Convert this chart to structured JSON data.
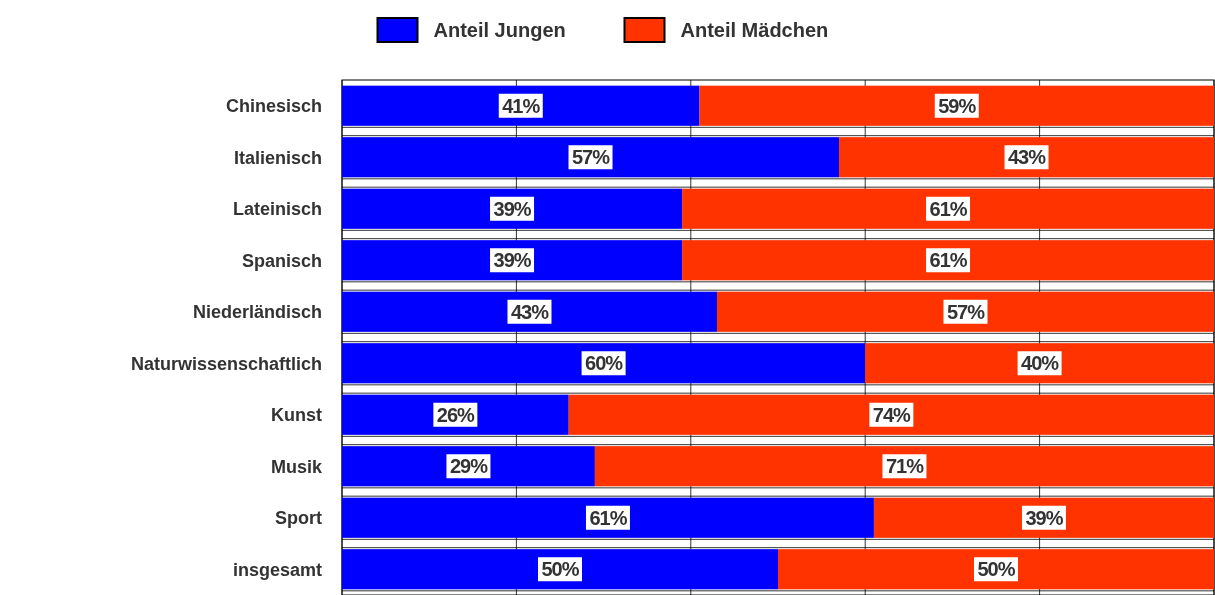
{
  "chart_data": {
    "type": "bar",
    "orientation": "horizontal",
    "stacked": true,
    "categories": [
      "Chinesisch",
      "Italienisch",
      "Lateinisch",
      "Spanisch",
      "Niederländisch",
      "Naturwissenschaftlich",
      "Kunst",
      "Musik",
      "Sport",
      "insgesamt"
    ],
    "series": [
      {
        "name": "Anteil Jungen",
        "color": "#0000ff",
        "values": [
          41,
          57,
          39,
          39,
          43,
          60,
          26,
          29,
          61,
          50
        ],
        "value_labels": [
          "41%",
          "57%",
          "39%",
          "39%",
          "43%",
          "60%",
          "26%",
          "29%",
          "61%",
          "50%"
        ]
      },
      {
        "name": "Anteil Mädchen",
        "color": "#ff3300",
        "values": [
          59,
          43,
          61,
          61,
          57,
          40,
          74,
          71,
          39,
          50
        ],
        "value_labels": [
          "59%",
          "43%",
          "61%",
          "61%",
          "57%",
          "40%",
          "74%",
          "71%",
          "39%",
          "50%"
        ]
      }
    ],
    "xlim": [
      0,
      100
    ],
    "xticks": [
      {
        "value": 0,
        "label": null
      },
      {
        "value": 20,
        "label": null
      },
      {
        "value": 40,
        "label": null
      },
      {
        "value": 60,
        "label": null
      },
      {
        "value": 80,
        "label": null
      },
      {
        "value": 100,
        "label": null
      }
    ],
    "tick_labels": "y",
    "grid": true,
    "legend": "top"
  }
}
